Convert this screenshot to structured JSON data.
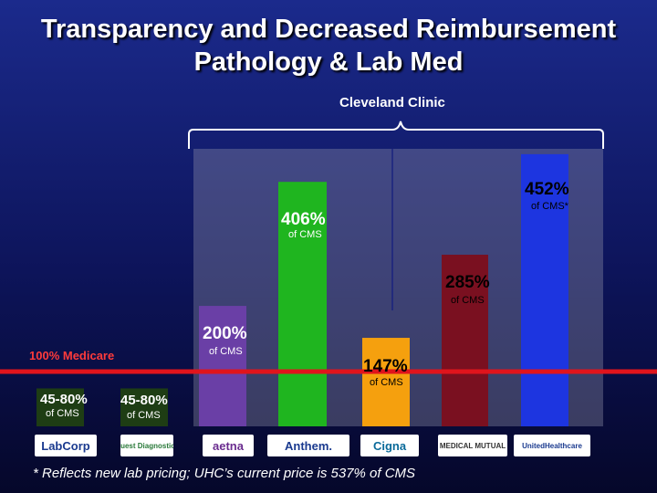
{
  "slide": {
    "title_line1": "Transparency and  Decreased Reimbursement",
    "title_line2": "Pathology & Lab Med",
    "bracket_label": "Cleveland Clinic",
    "footnote": "* Reflects new lab pricing; UHC’s current price is 537% of CMS",
    "reference_label": "100% Medicare"
  },
  "chart_data": {
    "type": "bar",
    "title": "Transparency and  Decreased Reimbursement Pathology & Lab Med",
    "categories": [
      "LabCorp",
      "Quest Diagnostics",
      "aetna",
      "Anthem",
      "Cigna",
      "Medical Mutual",
      "UnitedHealthcare"
    ],
    "values": [
      63,
      63,
      200,
      406,
      147,
      285,
      452
    ],
    "value_labels": [
      "45-80%",
      "45-80%",
      "200%",
      "406%",
      "147%",
      "285%",
      "452%"
    ],
    "sub_labels": [
      "of CMS",
      "of CMS",
      "of CMS",
      "of CMS",
      "of CMS",
      "of CMS",
      "of CMS*"
    ],
    "colors": [
      "#1e3d14",
      "#1e3d14",
      "#6a3fa6",
      "#1fb51f",
      "#f5a00e",
      "#7a1020",
      "#1d35e0"
    ],
    "reference_line": {
      "value": 100,
      "label": "100% Medicare",
      "color": "#e0141c"
    },
    "bracket": {
      "label": "Cleveland Clinic"
    },
    "ylim": [
      0,
      470
    ]
  },
  "logos": [
    {
      "name": "LabCorp",
      "text": "LabCorp",
      "color": "#1a3a8f"
    },
    {
      "name": "Quest Diagnostics",
      "text": "Quest Diagnostics",
      "color": "#2a7a3a"
    },
    {
      "name": "aetna",
      "text": "aetna",
      "color": "#6a2c8f"
    },
    {
      "name": "Anthem",
      "text": "Anthem.",
      "color": "#1a3a8f"
    },
    {
      "name": "Cigna",
      "text": "Cigna",
      "color": "#0a6a9a"
    },
    {
      "name": "Medical Mutual",
      "text": "MEDICAL MUTUAL",
      "color": "#333333"
    },
    {
      "name": "UnitedHealthcare",
      "text": "UnitedHealthcare",
      "color": "#1a3a8f"
    }
  ]
}
